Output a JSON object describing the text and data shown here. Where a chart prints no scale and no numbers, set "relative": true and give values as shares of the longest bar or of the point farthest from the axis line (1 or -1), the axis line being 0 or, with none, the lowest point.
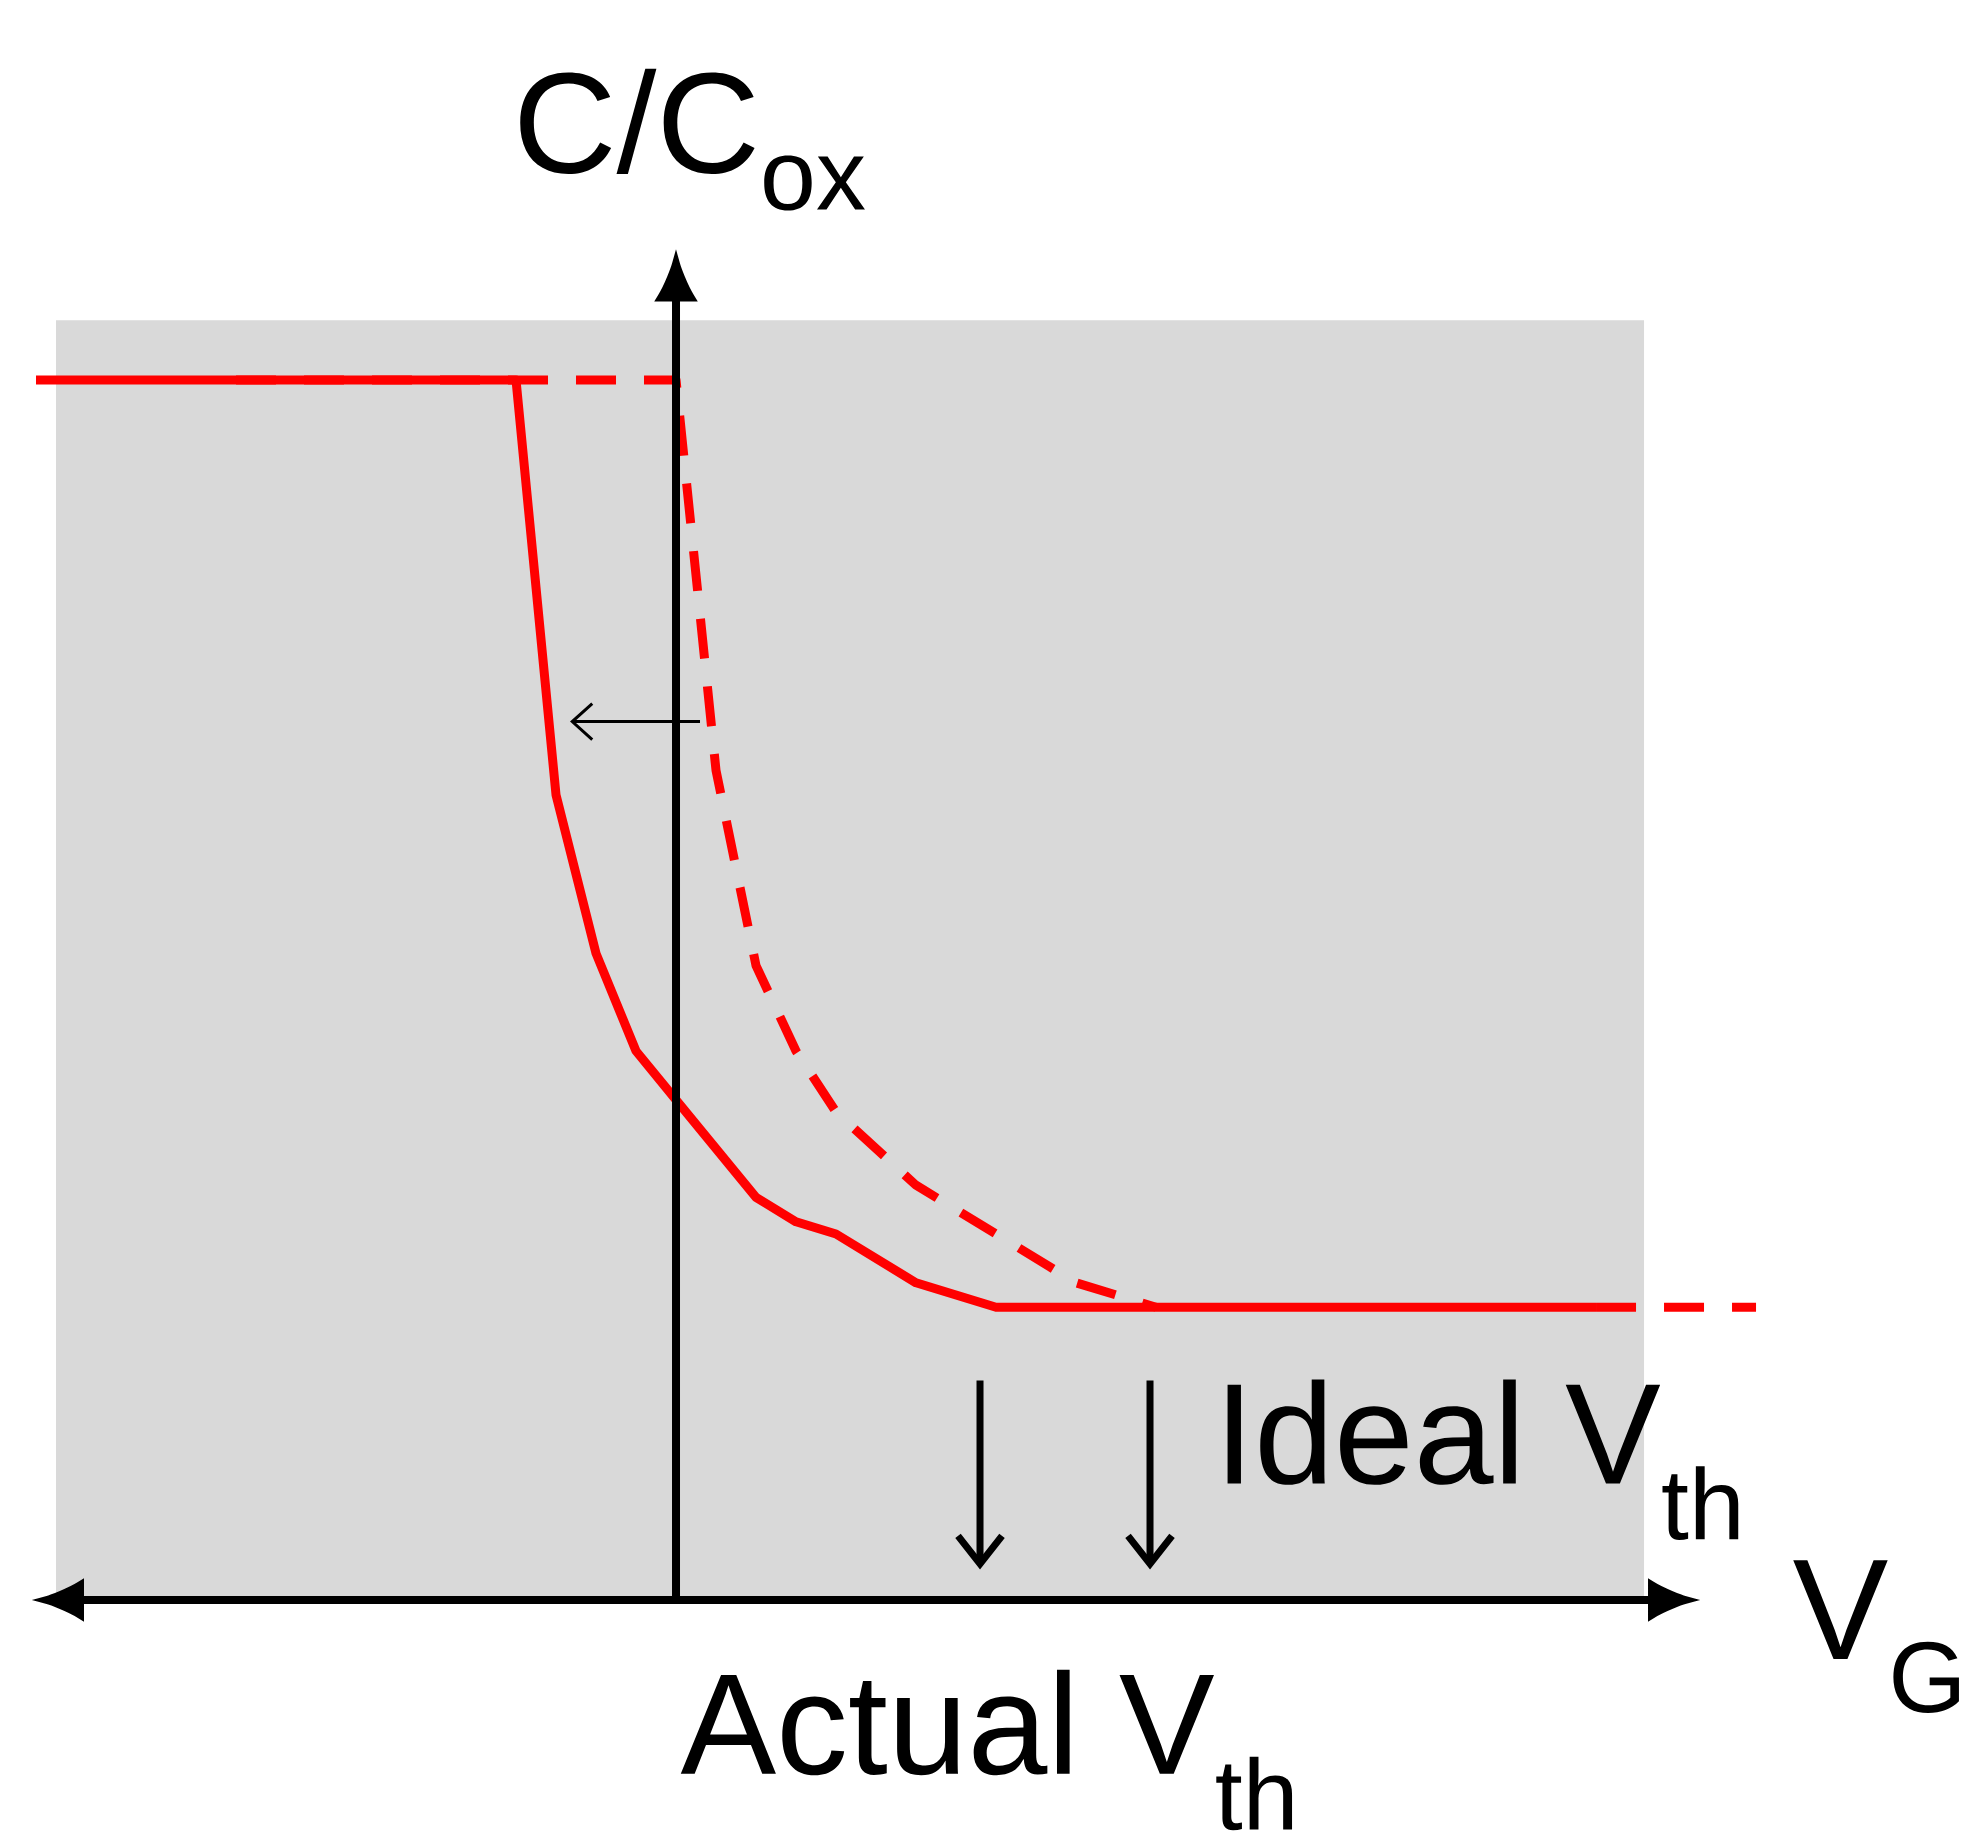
{
  "chart_data": {
    "type": "line",
    "relative": true,
    "xlabel": "V$_{G}$",
    "ylabel": "C/C$_{ox}$",
    "categories": [
      null,
      null,
      null,
      null,
      null,
      null,
      null,
      null,
      null,
      null,
      null,
      null,
      null,
      null,
      null,
      null,
      null,
      null,
      null,
      null,
      null,
      null,
      null,
      null,
      null,
      null,
      null,
      null,
      null,
      null,
      null,
      null,
      null,
      null,
      null,
      null,
      null,
      null,
      null,
      null,
      null,
      null,
      null,
      null
    ],
    "series": [
      {
        "color": "#ff0000",
        "line_style": "solid",
        "values": [
          1,
          1,
          1,
          1,
          1,
          1,
          1,
          1,
          1,
          1,
          1,
          1,
          1,
          0.66,
          0.53,
          0.45,
          0.41,
          0.37,
          0.33,
          0.31,
          0.3,
          0.28,
          0.26,
          0.25,
          0.24,
          0.24,
          0.24,
          0.24,
          0.24,
          0.24,
          0.24,
          0.24,
          0.24,
          0.24,
          0.24,
          0.24,
          0.24,
          0.24,
          0.24,
          0.24,
          null,
          null,
          null,
          null
        ]
      },
      {
        "color": "#ff0000",
        "line_style": "dashed",
        "values": [
          null,
          null,
          null,
          null,
          null,
          1,
          1,
          1,
          1,
          1,
          1,
          1,
          1,
          1,
          1,
          1,
          1,
          0.68,
          0.52,
          0.45,
          0.4,
          0.37,
          0.34,
          0.32,
          0.3,
          0.28,
          0.26,
          0.25,
          0.24,
          null,
          null,
          null,
          null,
          null,
          null,
          null,
          null,
          null,
          null,
          0.24,
          0.24,
          0.24,
          0.24,
          0.24
        ]
      }
    ],
    "annotations": [
      "Ideal V$_{th}$",
      "Actual V$_{th}$"
    ]
  }
}
